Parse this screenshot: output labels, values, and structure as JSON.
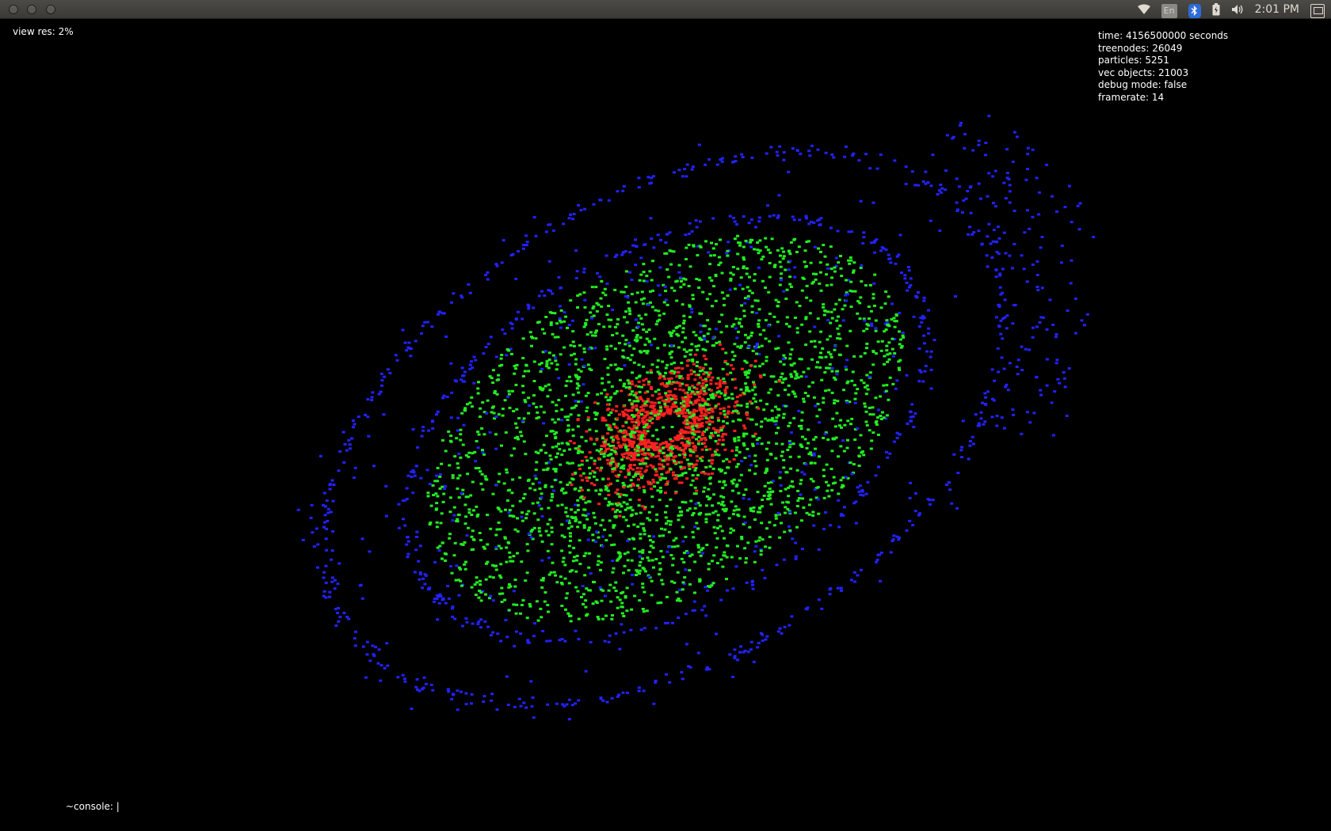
{
  "topbar": {
    "clock": "2:01 PM",
    "language_indicator": "En",
    "icons": [
      "wifi-icon",
      "bluetooth-icon",
      "battery-icon",
      "volume-icon",
      "session-icon"
    ]
  },
  "viewport": {
    "view_res": "view res: 2%"
  },
  "stats": {
    "time": "time: 4156500000 seconds",
    "treenodes": "treenodes: 26049",
    "particles": "particles: 5251",
    "vec_objects": "vec objects: 21003",
    "debug_mode": "debug mode: false",
    "framerate": "framerate: 14"
  },
  "console": {
    "prompt": "~console: |"
  },
  "colors": {
    "core_particles": "#ff2020",
    "mid_particles": "#22ee22",
    "outer_particles": "#2222ff",
    "background": "#000000"
  }
}
